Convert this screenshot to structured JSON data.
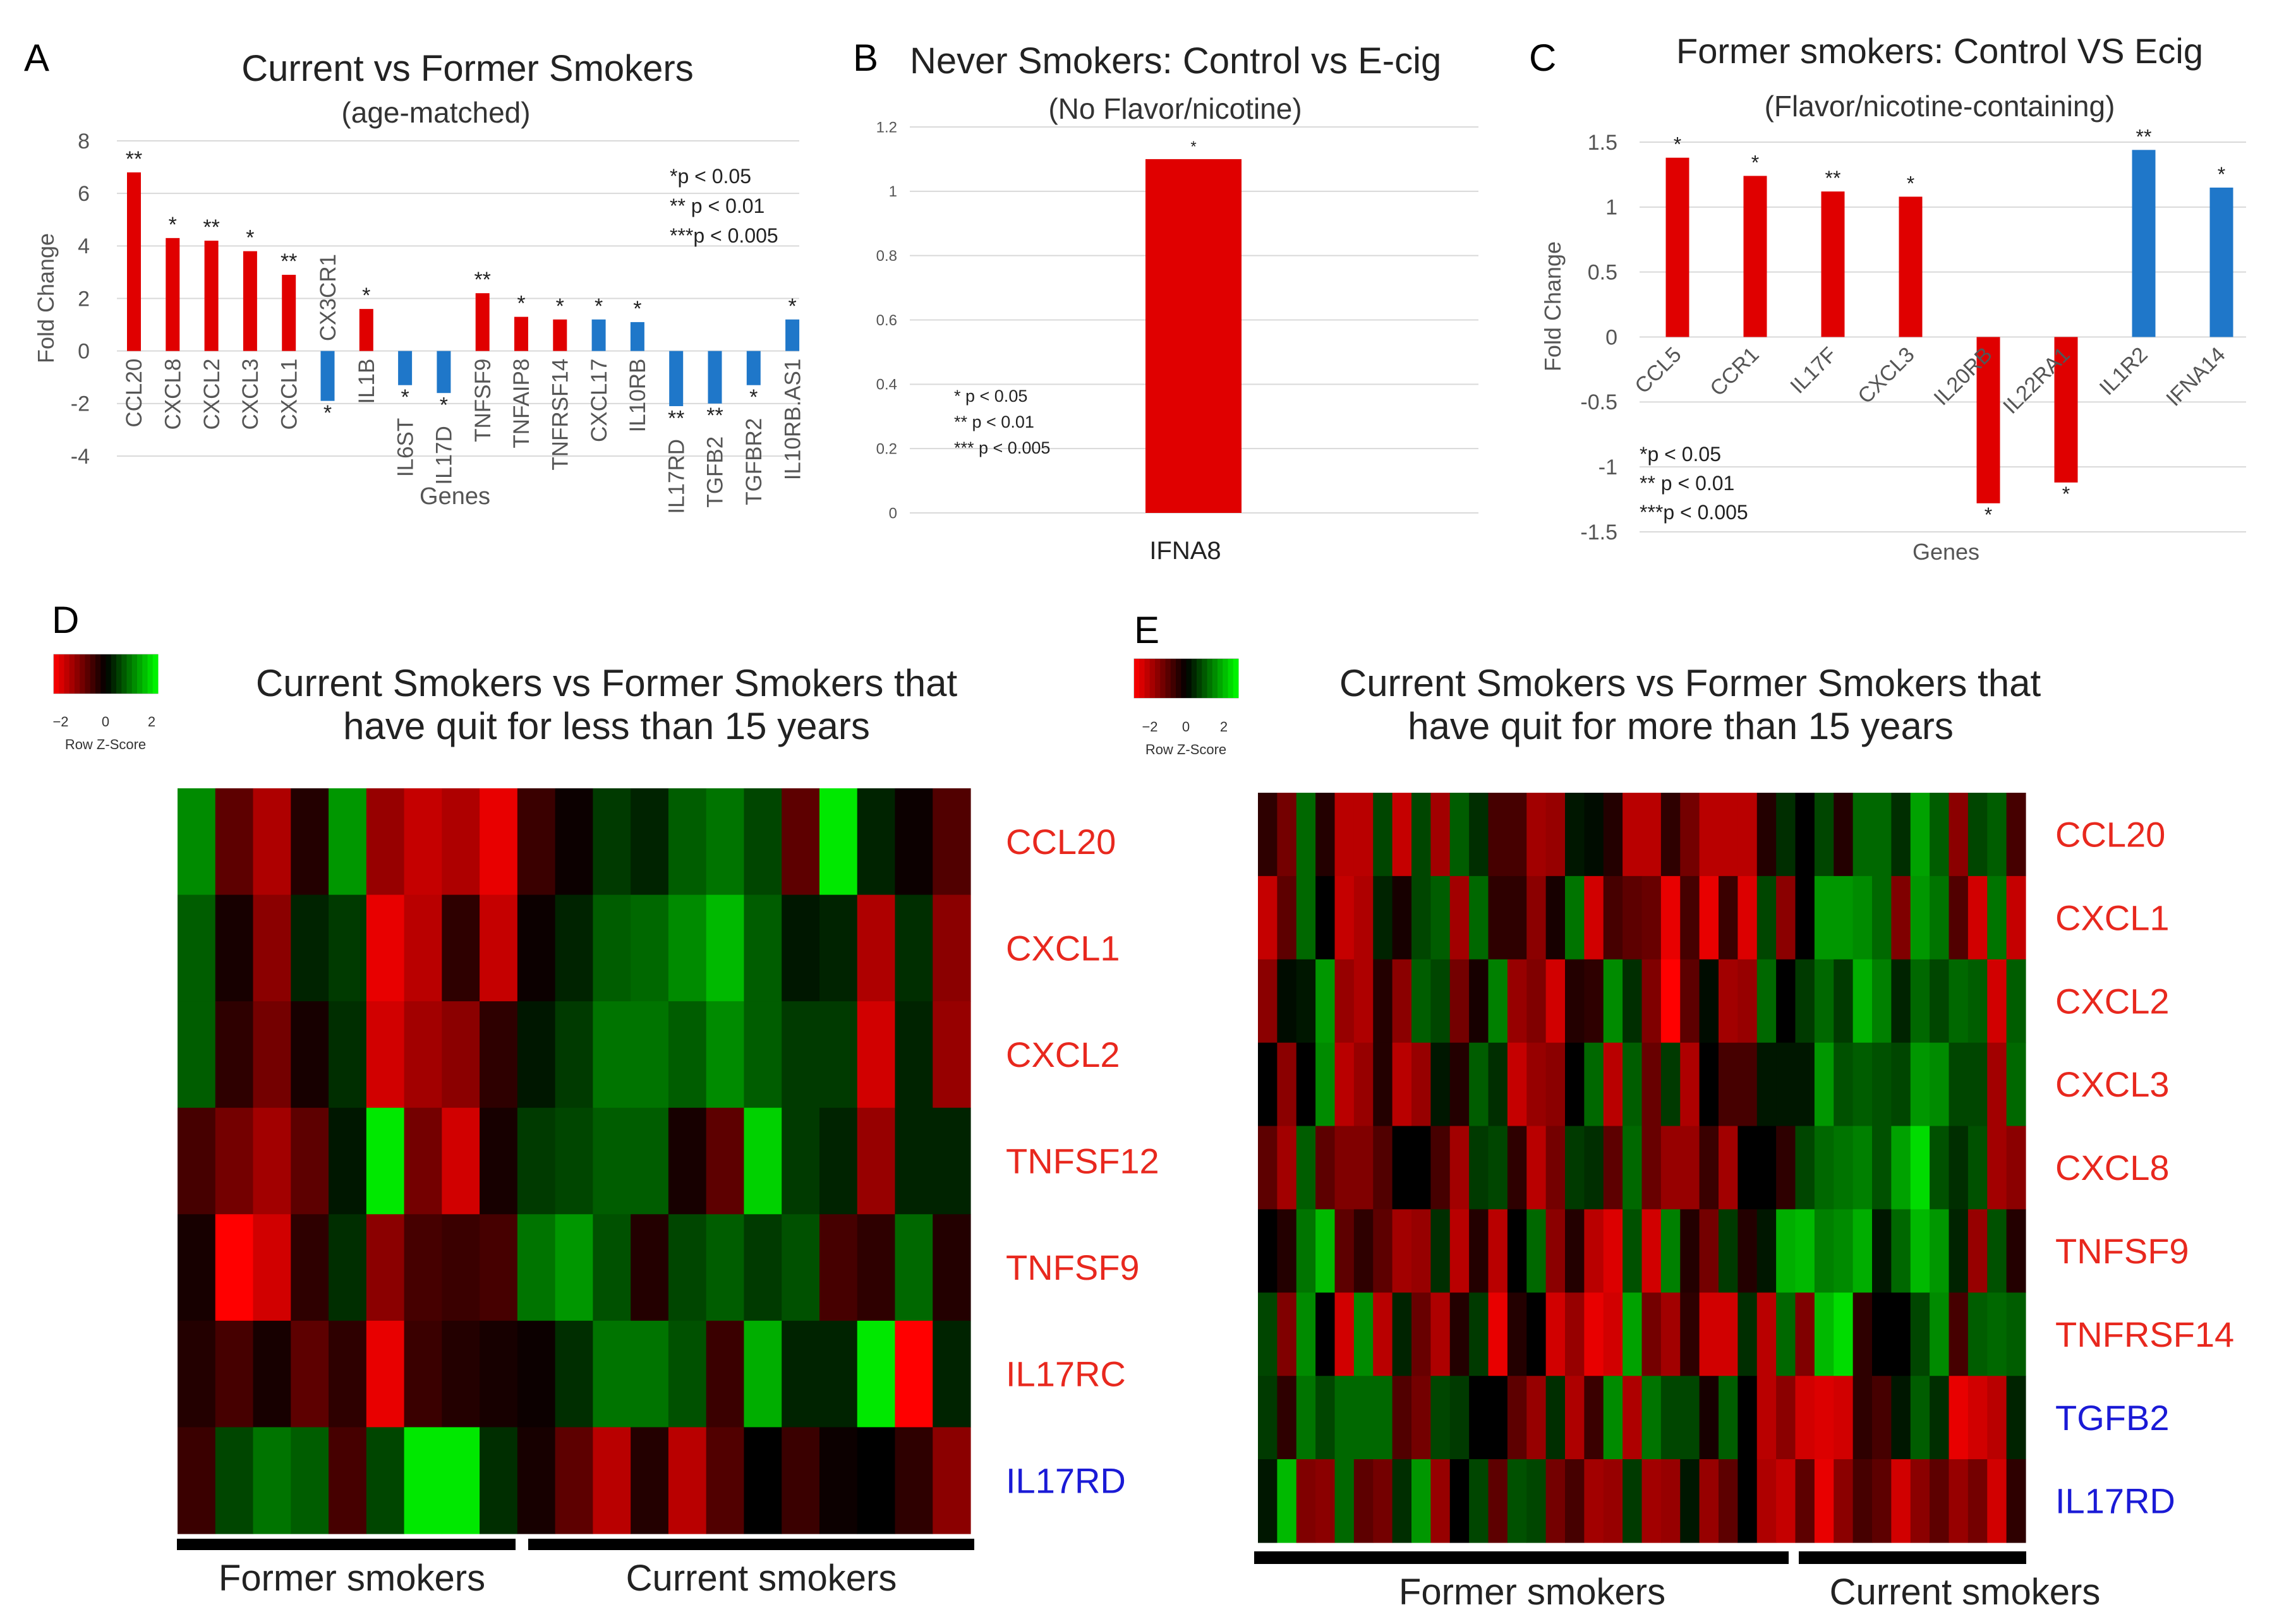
{
  "colors": {
    "up": "#e00000",
    "down": "#1f77c9",
    "red_label": "#e8281e",
    "blue_label": "#1a1ad6",
    "grid": "#d9d9d9"
  },
  "chart_data": [
    {
      "panel": "A",
      "type": "bar",
      "title": "Current vs Former Smokers",
      "subtitle": "(age-matched)",
      "xlabel": "Genes",
      "ylabel": "Fold Change",
      "ylim": [
        -4,
        8
      ],
      "yticks": [
        -4,
        -2,
        0,
        2,
        4,
        6,
        8
      ],
      "categories": [
        "CCL20",
        "CXCL8",
        "CXCL2",
        "CXCL3",
        "CXCL1",
        "CX3CR1",
        "IL1B",
        "IL6ST",
        "IL17D",
        "TNFSF9",
        "TNFAIP8",
        "TNFRSF14",
        "CXCL17",
        "IL10RB",
        "IL17RD",
        "TGFB2",
        "TGFBR2",
        "IL10RB.AS1"
      ],
      "values": [
        6.8,
        4.3,
        4.2,
        3.8,
        2.9,
        -1.9,
        1.6,
        -1.3,
        -1.6,
        2.2,
        1.3,
        1.2,
        1.2,
        1.1,
        -2.1,
        -2.0,
        -1.3,
        1.2
      ],
      "direction": [
        "up",
        "up",
        "up",
        "up",
        "up",
        "down",
        "up",
        "down",
        "down",
        "up",
        "up",
        "up",
        "down",
        "down",
        "down",
        "down",
        "down",
        "down"
      ],
      "significance": [
        "**",
        "*",
        "**",
        "*",
        "**",
        "*",
        "*",
        "*",
        "*",
        "**",
        "*",
        "*",
        "*",
        "*",
        "**",
        "**",
        "*",
        "*"
      ],
      "legend": [
        "*p < 0.05",
        "** p < 0.01",
        "***p < 0.005"
      ]
    },
    {
      "panel": "B",
      "type": "bar",
      "title": "Never Smokers: Control vs E-cig",
      "subtitle": "(No Flavor/nicotine)",
      "ylim": [
        0,
        1.2
      ],
      "yticks": [
        "0",
        "0.2",
        "0.4",
        "0.6",
        "0.8",
        "1",
        "1.2"
      ],
      "categories": [
        "IFNA8"
      ],
      "values": [
        1.1
      ],
      "direction": [
        "up"
      ],
      "significance": [
        "*"
      ],
      "legend": [
        "*  p < 0.05",
        "** p < 0.01",
        "*** p < 0.005"
      ]
    },
    {
      "panel": "C",
      "type": "bar",
      "title": "Former smokers: Control VS Ecig",
      "subtitle": "(Flavor/nicotine-containing)",
      "xlabel": "Genes",
      "ylabel": "Fold Change",
      "ylim": [
        -1.5,
        1.5
      ],
      "yticks": [
        "-1.5",
        "-1",
        "-0.5",
        "0",
        "0.5",
        "1",
        "1.5"
      ],
      "categories": [
        "CCL5",
        "CCR1",
        "IL17F",
        "CXCL3",
        "IL20RB",
        "IL22RA1",
        "IL1R2",
        "IFNA14"
      ],
      "values": [
        1.38,
        1.24,
        1.12,
        1.08,
        -1.28,
        -1.12,
        1.44,
        1.15
      ],
      "direction": [
        "up",
        "up",
        "up",
        "up",
        "up",
        "up",
        "down",
        "down"
      ],
      "significance": [
        "*",
        "*",
        "**",
        "*",
        "*",
        "*",
        "**",
        "*"
      ],
      "legend": [
        "*p < 0.05",
        "** p < 0.01",
        "***p < 0.005"
      ]
    },
    {
      "panel": "D",
      "type": "heatmap",
      "title_lines": [
        "Current Smokers vs  Former Smokers that",
        "have quit for less than 15 years"
      ],
      "colorkey": {
        "ticks": [
          "−2",
          "0",
          "2"
        ],
        "label": "Row Z-Score"
      },
      "rows": [
        "CCL20",
        "CXCL1",
        "CXCL2",
        "TNFSF12",
        "TNFSF9",
        "IL17RC",
        "IL17RD"
      ],
      "row_colors": [
        "red",
        "red",
        "red",
        "red",
        "red",
        "red",
        "blue"
      ],
      "groups": [
        "Former smokers",
        "Current smokers"
      ],
      "values": [
        [
          1.2,
          -0.8,
          -1.5,
          -0.3,
          1.3,
          -1.3,
          -1.7,
          -1.5,
          -2.0,
          -0.5,
          -0.1,
          0.5,
          0.3,
          0.8,
          1.0,
          0.6,
          -0.8,
          2.0,
          0.3,
          -0.1,
          -0.7
        ],
        [
          0.8,
          -0.2,
          -1.2,
          0.3,
          0.5,
          -2.0,
          -1.6,
          -0.4,
          -1.7,
          -0.1,
          0.3,
          0.8,
          0.9,
          1.2,
          1.6,
          0.8,
          0.2,
          0.3,
          -1.5,
          0.4,
          -1.2
        ],
        [
          0.8,
          -0.4,
          -1.0,
          -0.2,
          0.4,
          -1.8,
          -1.4,
          -1.2,
          -0.4,
          0.2,
          0.5,
          1.0,
          1.0,
          0.8,
          1.2,
          0.8,
          0.5,
          0.5,
          -1.8,
          0.3,
          -1.3
        ],
        [
          -0.6,
          -1.0,
          -1.4,
          -0.8,
          0.2,
          2.0,
          -1.0,
          -1.8,
          -0.2,
          0.5,
          0.6,
          0.8,
          0.8,
          -0.2,
          -0.8,
          1.8,
          0.5,
          0.3,
          -1.3,
          0.3,
          0.3
        ],
        [
          -0.2,
          -2.2,
          -1.8,
          -0.4,
          0.4,
          -1.2,
          -0.6,
          -0.5,
          -0.6,
          1.0,
          1.3,
          0.7,
          -0.3,
          0.6,
          0.8,
          0.5,
          0.7,
          -0.6,
          -0.4,
          0.9,
          -0.3
        ],
        [
          -0.3,
          -0.6,
          -0.2,
          -0.8,
          -0.4,
          -2.0,
          -0.5,
          -0.3,
          -0.2,
          -0.1,
          0.4,
          1.0,
          1.0,
          0.7,
          -0.5,
          1.5,
          0.3,
          0.3,
          2.0,
          -2.2,
          0.3
        ],
        [
          -0.5,
          0.6,
          1.0,
          0.8,
          -0.6,
          0.6,
          2.0,
          2.0,
          0.4,
          -0.2,
          -0.8,
          -1.6,
          -0.3,
          -1.6,
          -0.7,
          0.0,
          -0.5,
          -0.1,
          0.0,
          -0.4,
          -1.2
        ]
      ]
    },
    {
      "panel": "E",
      "type": "heatmap",
      "title_lines": [
        "Current Smokers vs  Former Smokers that",
        "have quit for more than 15 years"
      ],
      "colorkey": {
        "ticks": [
          "−2",
          "0",
          "2"
        ],
        "label": "Row Z-Score"
      },
      "rows": [
        "CCL20",
        "CXCL1",
        "CXCL2",
        "CXCL3",
        "CXCL8",
        "TNFSF9",
        "TNFRSF14",
        "TGFB2",
        "IL17RD"
      ],
      "row_colors": [
        "red",
        "red",
        "red",
        "red",
        "red",
        "red",
        "red",
        "blue",
        "blue"
      ],
      "groups": [
        "Former smokers",
        "Current smokers"
      ],
      "values": [
        [
          -0.4,
          -1.0,
          0.9,
          -0.3,
          -1.6,
          -1.6,
          0.6,
          -1.7,
          0.6,
          -1.4,
          0.8,
          0.4,
          -0.6,
          -0.6,
          -1.4,
          -1.3,
          0.2,
          0.1,
          -0.3,
          -1.6,
          -1.6,
          -0.4,
          -1.0,
          -1.6,
          -1.6,
          -1.6,
          -0.3,
          0.4,
          0.0,
          0.6,
          -0.3,
          0.9,
          0.9,
          0.4,
          1.4,
          0.8,
          -1.2,
          0.6,
          0.8,
          -0.6
        ],
        [
          -1.7,
          -0.8,
          0.9,
          0.0,
          -1.7,
          -1.5,
          0.3,
          -0.2,
          0.6,
          0.8,
          -1.4,
          0.9,
          -0.4,
          -0.4,
          -1.2,
          -0.2,
          1.0,
          -1.8,
          -0.6,
          -0.8,
          -0.9,
          -2.0,
          -0.6,
          -2.0,
          -0.5,
          -1.9,
          0.6,
          -1.2,
          0.0,
          1.3,
          1.3,
          1.2,
          0.9,
          -1.1,
          1.3,
          1.0,
          -0.7,
          -1.8,
          1.0,
          -1.7
        ],
        [
          -1.2,
          0.1,
          0.2,
          1.3,
          -1.3,
          -1.5,
          -0.3,
          -1.2,
          0.8,
          0.6,
          -1.0,
          -0.2,
          1.1,
          -1.3,
          -1.1,
          -1.8,
          -0.3,
          -0.4,
          1.2,
          0.4,
          -1.1,
          -2.2,
          -0.8,
          0.1,
          -1.4,
          -1.3,
          0.9,
          0.0,
          0.5,
          0.9,
          0.5,
          1.5,
          1.1,
          0.3,
          0.9,
          0.6,
          0.9,
          0.8,
          -1.8,
          0.8
        ],
        [
          0.0,
          -1.2,
          0.0,
          1.2,
          -1.6,
          -1.3,
          -0.3,
          -1.6,
          -1.3,
          0.2,
          -0.3,
          0.8,
          0.4,
          -1.7,
          -1.3,
          -1.2,
          0.0,
          0.9,
          -1.6,
          0.8,
          -0.9,
          0.5,
          -1.5,
          0.0,
          -0.6,
          -0.6,
          0.2,
          0.2,
          0.2,
          1.3,
          0.7,
          0.8,
          0.7,
          0.6,
          1.3,
          1.2,
          0.6,
          0.6,
          -1.4,
          0.9
        ],
        [
          -0.8,
          -1.4,
          0.8,
          -0.8,
          -1.1,
          -1.1,
          -0.7,
          0.0,
          0.0,
          -0.6,
          -1.4,
          0.5,
          0.6,
          -0.4,
          -1.6,
          -1.0,
          0.5,
          0.4,
          -0.8,
          0.9,
          -0.9,
          -1.3,
          -1.3,
          -0.5,
          -1.4,
          0.0,
          0.0,
          -0.4,
          0.6,
          0.9,
          1.0,
          1.1,
          0.7,
          1.4,
          1.9,
          0.7,
          0.4,
          0.7,
          -1.4,
          -1.2
        ],
        [
          0.0,
          -0.3,
          1.0,
          1.6,
          -0.8,
          -0.4,
          -0.8,
          -1.4,
          -1.3,
          0.4,
          -1.6,
          -0.3,
          -1.6,
          0.0,
          0.9,
          -1.2,
          -0.3,
          -1.6,
          -1.9,
          0.7,
          -1.8,
          1.1,
          -0.3,
          -1.0,
          0.5,
          -0.3,
          0.2,
          1.5,
          1.6,
          1.1,
          1.2,
          1.5,
          0.2,
          0.9,
          1.6,
          1.3,
          0.3,
          -1.3,
          0.7,
          -0.3
        ],
        [
          0.6,
          -1.1,
          1.2,
          0.0,
          -1.8,
          1.2,
          -1.6,
          0.3,
          -0.9,
          -1.5,
          -0.3,
          0.5,
          -2.0,
          -0.3,
          0.0,
          -1.8,
          -1.3,
          -2.0,
          -1.8,
          1.4,
          -1.0,
          -1.4,
          -0.4,
          -1.8,
          -1.8,
          0.4,
          -1.6,
          0.9,
          -1.1,
          1.6,
          1.9,
          -0.4,
          0.0,
          0.0,
          0.6,
          1.2,
          -0.6,
          0.8,
          0.9,
          0.8
        ],
        [
          0.5,
          -0.4,
          1.0,
          0.6,
          0.9,
          0.9,
          0.9,
          -0.7,
          -1.0,
          0.6,
          0.5,
          0.0,
          0.0,
          -0.8,
          -1.3,
          0.4,
          -1.5,
          -0.5,
          1.2,
          -1.5,
          1.0,
          0.6,
          0.6,
          -0.2,
          0.8,
          0.0,
          -1.6,
          -1.2,
          -1.8,
          -1.9,
          -1.8,
          -0.4,
          -0.6,
          0.2,
          0.8,
          0.4,
          -2.0,
          -1.8,
          -1.6,
          0.3
        ],
        [
          0.2,
          1.6,
          -1.1,
          -1.2,
          0.9,
          -0.8,
          -1.0,
          0.4,
          1.3,
          -1.3,
          0.0,
          0.6,
          -0.8,
          0.7,
          0.6,
          -1.0,
          -0.6,
          -1.4,
          -1.3,
          0.5,
          -1.4,
          -1.3,
          0.2,
          -1.3,
          -0.8,
          0.0,
          -1.5,
          -1.7,
          -0.8,
          -2.0,
          -1.2,
          -0.6,
          -0.8,
          -1.8,
          -1.2,
          -0.8,
          -1.3,
          -1.0,
          -1.8,
          -0.4
        ]
      ]
    }
  ]
}
